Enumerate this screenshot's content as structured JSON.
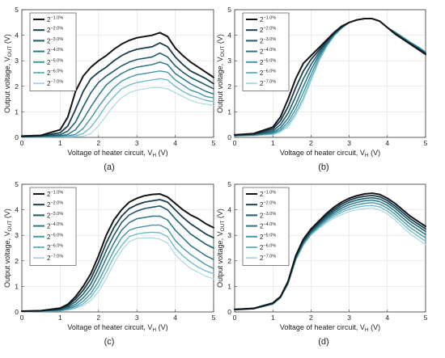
{
  "colors": {
    "series": [
      "#141414",
      "#1a3d4d",
      "#1f5a6a",
      "#2a7685",
      "#4497a6",
      "#6bb8c6",
      "#a9d8e0"
    ]
  },
  "chart_data": [
    {
      "type": "line",
      "panel_label": "(a)",
      "xlabel": "Voltage of heater circuit, V",
      "xlabel_sub": "H",
      "xlabel_unit": " (V)",
      "ylabel": "Output voltage, V",
      "ylabel_sub": "OUT",
      "ylabel_unit": " (V)",
      "xlim": [
        0,
        5
      ],
      "ylim": [
        0,
        5
      ],
      "xticks": [
        0,
        1,
        2,
        3,
        4,
        5
      ],
      "yticks": [
        0,
        1,
        2,
        3,
        4,
        5
      ],
      "grid": true,
      "legend_position": "top-left",
      "x": [
        0,
        0.5,
        1.0,
        1.2,
        1.4,
        1.6,
        1.8,
        2.0,
        2.2,
        2.4,
        2.6,
        2.8,
        3.0,
        3.2,
        3.4,
        3.6,
        3.8,
        4.0,
        4.2,
        4.4,
        4.6,
        4.8,
        5.0
      ],
      "series": [
        {
          "name": "2",
          "sup": "−1.0",
          "unit": "%",
          "values": [
            0.05,
            0.08,
            0.3,
            0.8,
            1.8,
            2.4,
            2.75,
            3.0,
            3.2,
            3.45,
            3.65,
            3.8,
            3.9,
            3.95,
            4.0,
            4.1,
            3.95,
            3.5,
            3.2,
            2.95,
            2.75,
            2.55,
            2.35
          ]
        },
        {
          "name": "2",
          "sup": "−2.0",
          "unit": "%",
          "values": [
            0.04,
            0.06,
            0.18,
            0.45,
            1.1,
            1.8,
            2.3,
            2.55,
            2.75,
            3.0,
            3.2,
            3.35,
            3.45,
            3.5,
            3.55,
            3.7,
            3.55,
            3.15,
            2.85,
            2.6,
            2.45,
            2.3,
            2.1
          ]
        },
        {
          "name": "2",
          "sup": "−3.0",
          "unit": "%",
          "values": [
            0.03,
            0.05,
            0.1,
            0.25,
            0.6,
            1.2,
            1.75,
            2.15,
            2.4,
            2.6,
            2.8,
            2.95,
            3.05,
            3.1,
            3.15,
            3.3,
            3.15,
            2.8,
            2.55,
            2.35,
            2.2,
            2.05,
            1.9
          ]
        },
        {
          "name": "2",
          "sup": "−4.0",
          "unit": "%",
          "values": [
            0.02,
            0.04,
            0.06,
            0.12,
            0.3,
            0.7,
            1.2,
            1.65,
            2.05,
            2.3,
            2.5,
            2.65,
            2.75,
            2.8,
            2.85,
            2.95,
            2.85,
            2.5,
            2.3,
            2.1,
            1.95,
            1.8,
            1.7
          ]
        },
        {
          "name": "2",
          "sup": "−5.0",
          "unit": "%",
          "values": [
            0.02,
            0.03,
            0.04,
            0.06,
            0.12,
            0.35,
            0.75,
            1.2,
            1.6,
            1.95,
            2.2,
            2.35,
            2.45,
            2.5,
            2.55,
            2.6,
            2.55,
            2.25,
            2.05,
            1.85,
            1.75,
            1.6,
            1.55
          ]
        },
        {
          "name": "2",
          "sup": "−6.0",
          "unit": "%",
          "values": [
            0.01,
            0.02,
            0.03,
            0.04,
            0.06,
            0.15,
            0.4,
            0.8,
            1.25,
            1.6,
            1.9,
            2.05,
            2.15,
            2.2,
            2.25,
            2.3,
            2.25,
            2.0,
            1.8,
            1.65,
            1.55,
            1.45,
            1.4
          ]
        },
        {
          "name": "2",
          "sup": "−7.0",
          "unit": "%",
          "values": [
            0.01,
            0.01,
            0.02,
            0.02,
            0.03,
            0.05,
            0.15,
            0.45,
            0.85,
            1.25,
            1.55,
            1.75,
            1.85,
            1.9,
            1.95,
            1.95,
            1.9,
            1.75,
            1.6,
            1.45,
            1.35,
            1.3,
            1.25
          ]
        }
      ]
    },
    {
      "type": "line",
      "panel_label": "(b)",
      "xlabel": "Voltage of heater circuit, V",
      "xlabel_sub": "H",
      "xlabel_unit": " (V)",
      "ylabel": "Output voltage, V",
      "ylabel_sub": "OUT",
      "ylabel_unit": " (V)",
      "xlim": [
        0,
        5
      ],
      "ylim": [
        0,
        5
      ],
      "xticks": [
        0,
        1,
        2,
        3,
        4,
        5
      ],
      "yticks": [
        0,
        1,
        2,
        3,
        4,
        5
      ],
      "grid": true,
      "legend_position": "top-left",
      "x": [
        0,
        0.5,
        1.0,
        1.2,
        1.4,
        1.6,
        1.8,
        2.0,
        2.2,
        2.4,
        2.6,
        2.8,
        3.0,
        3.2,
        3.4,
        3.6,
        3.8,
        4.0,
        4.2,
        4.4,
        4.6,
        4.8,
        5.0
      ],
      "series": [
        {
          "name": "2",
          "sup": "−1.0",
          "unit": "%",
          "values": [
            0.1,
            0.15,
            0.4,
            0.8,
            1.5,
            2.3,
            2.9,
            3.2,
            3.5,
            3.8,
            4.1,
            4.35,
            4.5,
            4.6,
            4.65,
            4.65,
            4.55,
            4.3,
            4.05,
            3.85,
            3.65,
            3.45,
            3.25
          ]
        },
        {
          "name": "2",
          "sup": "−2.0",
          "unit": "%",
          "values": [
            0.09,
            0.13,
            0.33,
            0.65,
            1.2,
            1.95,
            2.6,
            3.05,
            3.4,
            3.75,
            4.08,
            4.33,
            4.5,
            4.6,
            4.65,
            4.65,
            4.55,
            4.3,
            4.07,
            3.87,
            3.67,
            3.48,
            3.28
          ]
        },
        {
          "name": "2",
          "sup": "−3.0",
          "unit": "%",
          "values": [
            0.08,
            0.11,
            0.26,
            0.5,
            0.95,
            1.6,
            2.3,
            2.85,
            3.3,
            3.7,
            4.05,
            4.32,
            4.5,
            4.6,
            4.65,
            4.65,
            4.55,
            4.3,
            4.08,
            3.88,
            3.68,
            3.5,
            3.3
          ]
        },
        {
          "name": "2",
          "sup": "−4.0",
          "unit": "%",
          "values": [
            0.07,
            0.1,
            0.2,
            0.38,
            0.75,
            1.3,
            2.0,
            2.65,
            3.2,
            3.65,
            4.02,
            4.3,
            4.5,
            4.6,
            4.65,
            4.65,
            4.55,
            4.3,
            4.1,
            3.9,
            3.7,
            3.52,
            3.32
          ]
        },
        {
          "name": "2",
          "sup": "−5.0",
          "unit": "%",
          "values": [
            0.06,
            0.09,
            0.16,
            0.3,
            0.6,
            1.1,
            1.75,
            2.45,
            3.1,
            3.6,
            4.0,
            4.28,
            4.5,
            4.6,
            4.65,
            4.65,
            4.55,
            4.3,
            4.12,
            3.92,
            3.72,
            3.54,
            3.34
          ]
        },
        {
          "name": "2",
          "sup": "−6.0",
          "unit": "%",
          "values": [
            0.06,
            0.08,
            0.13,
            0.25,
            0.5,
            0.95,
            1.55,
            2.3,
            3.0,
            3.55,
            3.98,
            4.27,
            4.5,
            4.6,
            4.65,
            4.65,
            4.55,
            4.3,
            4.13,
            3.93,
            3.73,
            3.55,
            3.35
          ]
        },
        {
          "name": "2",
          "sup": "−7.0",
          "unit": "%",
          "values": [
            0.05,
            0.07,
            0.11,
            0.2,
            0.42,
            0.85,
            1.45,
            2.2,
            2.95,
            3.52,
            3.96,
            4.26,
            4.5,
            4.6,
            4.65,
            4.65,
            4.55,
            4.3,
            4.14,
            3.94,
            3.74,
            3.56,
            3.36
          ]
        }
      ]
    },
    {
      "type": "line",
      "panel_label": "(c)",
      "xlabel": "Voltage of heater circuit, V",
      "xlabel_sub": "H",
      "xlabel_unit": " (V)",
      "ylabel": "Output voltage, V",
      "ylabel_sub": "OUT",
      "ylabel_unit": " (V)",
      "xlim": [
        0,
        5
      ],
      "ylim": [
        0,
        5
      ],
      "xticks": [
        0,
        1,
        2,
        3,
        4,
        5
      ],
      "yticks": [
        0,
        1,
        2,
        3,
        4,
        5
      ],
      "grid": true,
      "legend_position": "top-left",
      "x": [
        0,
        0.5,
        1.0,
        1.2,
        1.4,
        1.6,
        1.8,
        2.0,
        2.2,
        2.4,
        2.6,
        2.8,
        3.0,
        3.2,
        3.4,
        3.6,
        3.8,
        4.0,
        4.2,
        4.4,
        4.6,
        4.8,
        5.0
      ],
      "series": [
        {
          "name": "2",
          "sup": "−1.0",
          "unit": "%",
          "values": [
            0.03,
            0.05,
            0.15,
            0.3,
            0.6,
            1.0,
            1.5,
            2.2,
            3.0,
            3.6,
            4.0,
            4.3,
            4.45,
            4.55,
            4.6,
            4.62,
            4.5,
            4.25,
            4.0,
            3.8,
            3.65,
            3.45,
            3.3
          ]
        },
        {
          "name": "2",
          "sup": "−2.0",
          "unit": "%",
          "values": [
            0.03,
            0.04,
            0.12,
            0.25,
            0.5,
            0.85,
            1.3,
            1.95,
            2.7,
            3.3,
            3.75,
            4.05,
            4.2,
            4.3,
            4.35,
            4.4,
            4.3,
            4.0,
            3.7,
            3.45,
            3.25,
            3.05,
            2.9
          ]
        },
        {
          "name": "2",
          "sup": "−3.0",
          "unit": "%",
          "values": [
            0.02,
            0.04,
            0.1,
            0.2,
            0.4,
            0.7,
            1.1,
            1.7,
            2.4,
            3.0,
            3.5,
            3.8,
            3.95,
            4.05,
            4.1,
            4.15,
            4.0,
            3.65,
            3.35,
            3.05,
            2.85,
            2.65,
            2.5
          ]
        },
        {
          "name": "2",
          "sup": "−4.0",
          "unit": "%",
          "values": [
            0.02,
            0.03,
            0.08,
            0.15,
            0.3,
            0.55,
            0.9,
            1.45,
            2.1,
            2.7,
            3.2,
            3.5,
            3.65,
            3.7,
            3.75,
            3.75,
            3.6,
            3.2,
            2.9,
            2.6,
            2.4,
            2.2,
            2.05
          ]
        },
        {
          "name": "2",
          "sup": "−5.0",
          "unit": "%",
          "values": [
            0.02,
            0.03,
            0.06,
            0.12,
            0.22,
            0.42,
            0.72,
            1.2,
            1.8,
            2.4,
            2.9,
            3.2,
            3.3,
            3.35,
            3.4,
            3.4,
            3.25,
            2.8,
            2.5,
            2.25,
            2.05,
            1.85,
            1.7
          ]
        },
        {
          "name": "2",
          "sup": "−6.0",
          "unit": "%",
          "values": [
            0.01,
            0.02,
            0.05,
            0.09,
            0.17,
            0.32,
            0.58,
            1.0,
            1.55,
            2.15,
            2.6,
            2.95,
            3.05,
            3.1,
            3.12,
            3.1,
            2.95,
            2.5,
            2.2,
            1.95,
            1.75,
            1.6,
            1.5
          ]
        },
        {
          "name": "2",
          "sup": "−7.0",
          "unit": "%",
          "values": [
            0.01,
            0.02,
            0.04,
            0.07,
            0.13,
            0.25,
            0.45,
            0.8,
            1.3,
            1.9,
            2.4,
            2.75,
            2.88,
            2.9,
            2.9,
            2.85,
            2.7,
            2.25,
            1.95,
            1.7,
            1.55,
            1.4,
            1.3
          ]
        }
      ]
    },
    {
      "type": "line",
      "panel_label": "(d)",
      "xlabel": "Voltage of heater circuit, V",
      "xlabel_sub": "H",
      "xlabel_unit": " (V)",
      "ylabel": "Output voltage, V",
      "ylabel_sub": "OUT",
      "ylabel_unit": " (V)",
      "xlim": [
        0,
        5
      ],
      "ylim": [
        0,
        5
      ],
      "xticks": [
        0,
        1,
        2,
        3,
        4,
        5
      ],
      "yticks": [
        0,
        1,
        2,
        3,
        4,
        5
      ],
      "grid": true,
      "legend_position": "top-left",
      "x": [
        0,
        0.5,
        1.0,
        1.2,
        1.4,
        1.6,
        1.8,
        2.0,
        2.2,
        2.4,
        2.6,
        2.8,
        3.0,
        3.2,
        3.4,
        3.6,
        3.8,
        4.0,
        4.2,
        4.4,
        4.6,
        4.8,
        5.0
      ],
      "series": [
        {
          "name": "2",
          "sup": "−1.0",
          "unit": "%",
          "values": [
            0.1,
            0.14,
            0.35,
            0.6,
            1.2,
            2.2,
            2.85,
            3.25,
            3.55,
            3.85,
            4.1,
            4.3,
            4.45,
            4.55,
            4.62,
            4.65,
            4.6,
            4.45,
            4.25,
            4.0,
            3.75,
            3.55,
            3.35
          ]
        },
        {
          "name": "2",
          "sup": "−2.0",
          "unit": "%",
          "values": [
            0.1,
            0.14,
            0.34,
            0.59,
            1.18,
            2.17,
            2.8,
            3.2,
            3.5,
            3.78,
            4.02,
            4.22,
            4.37,
            4.47,
            4.53,
            4.56,
            4.51,
            4.36,
            4.15,
            3.9,
            3.65,
            3.45,
            3.25
          ]
        },
        {
          "name": "2",
          "sup": "−3.0",
          "unit": "%",
          "values": [
            0.09,
            0.13,
            0.33,
            0.58,
            1.16,
            2.14,
            2.76,
            3.16,
            3.45,
            3.72,
            3.95,
            4.14,
            4.29,
            4.38,
            4.44,
            4.47,
            4.42,
            4.27,
            4.06,
            3.8,
            3.55,
            3.35,
            3.15
          ]
        },
        {
          "name": "2",
          "sup": "−4.0",
          "unit": "%",
          "values": [
            0.09,
            0.13,
            0.32,
            0.57,
            1.14,
            2.1,
            2.72,
            3.12,
            3.4,
            3.66,
            3.88,
            4.06,
            4.2,
            4.29,
            4.35,
            4.38,
            4.32,
            4.17,
            3.95,
            3.68,
            3.43,
            3.23,
            3.03
          ]
        },
        {
          "name": "2",
          "sup": "−5.0",
          "unit": "%",
          "values": [
            0.08,
            0.12,
            0.31,
            0.56,
            1.12,
            2.07,
            2.68,
            3.08,
            3.35,
            3.6,
            3.81,
            3.98,
            4.11,
            4.2,
            4.25,
            4.28,
            4.22,
            4.06,
            3.83,
            3.56,
            3.3,
            3.1,
            2.9
          ]
        },
        {
          "name": "2",
          "sup": "−6.0",
          "unit": "%",
          "values": [
            0.08,
            0.12,
            0.3,
            0.55,
            1.1,
            2.04,
            2.64,
            3.04,
            3.3,
            3.54,
            3.74,
            3.9,
            4.02,
            4.1,
            4.15,
            4.17,
            4.11,
            3.95,
            3.72,
            3.44,
            3.18,
            2.97,
            2.77
          ]
        },
        {
          "name": "2",
          "sup": "−7.0",
          "unit": "%",
          "values": [
            0.07,
            0.11,
            0.29,
            0.54,
            1.08,
            2.01,
            2.6,
            3.0,
            3.25,
            3.48,
            3.67,
            3.82,
            3.93,
            4.0,
            4.05,
            4.07,
            4.0,
            3.84,
            3.6,
            3.32,
            3.05,
            2.84,
            2.64
          ]
        }
      ]
    }
  ]
}
